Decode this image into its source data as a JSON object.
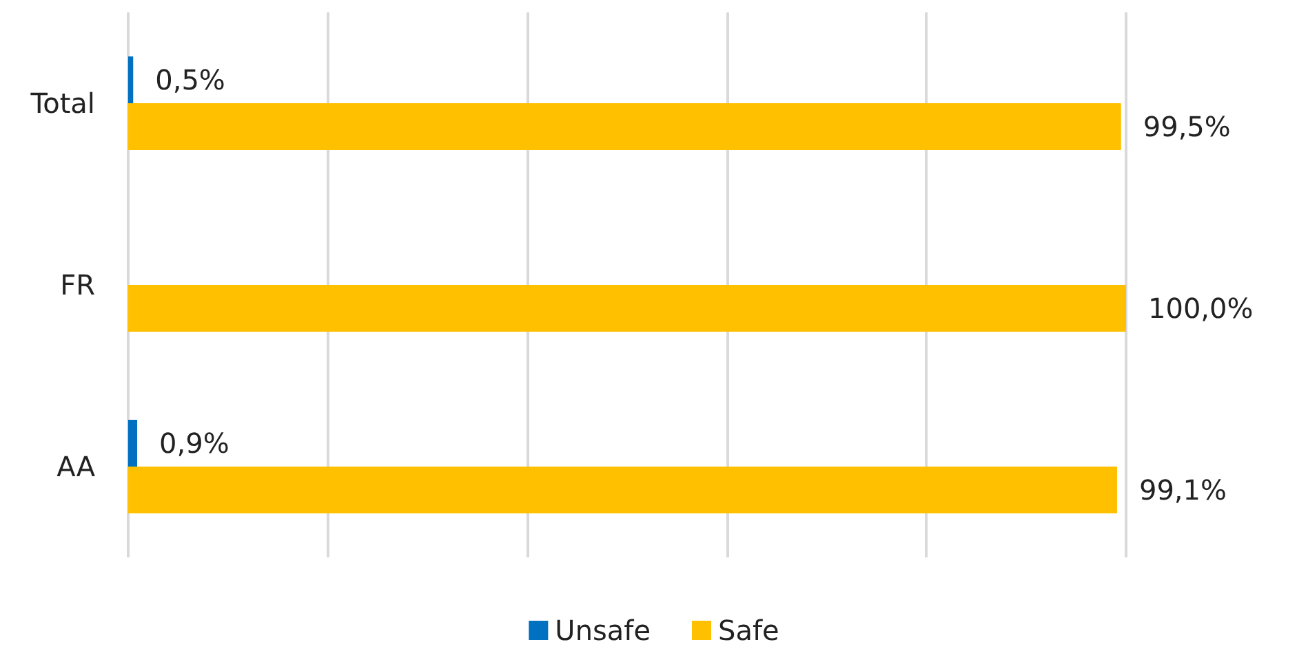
{
  "chart_data": {
    "type": "bar",
    "orientation": "horizontal",
    "categories": [
      "Total",
      "FR",
      "AA"
    ],
    "series": [
      {
        "name": "Unsafe",
        "color": "#0070c0",
        "values": [
          0.5,
          0,
          0.9
        ],
        "value_labels": [
          "0,5%",
          null,
          "0,9%"
        ]
      },
      {
        "name": "Safe",
        "color": "#ffc000",
        "values": [
          99.5,
          100,
          99.1
        ],
        "value_labels": [
          "99,5%",
          "100,0%",
          "99,1%"
        ]
      }
    ],
    "xlim": [
      0,
      100
    ],
    "xticks": [
      {
        "value": 0,
        "label": null
      },
      {
        "value": 20,
        "label": null
      },
      {
        "value": 40,
        "label": null
      },
      {
        "value": 60,
        "label": null
      },
      {
        "value": 80,
        "label": null
      },
      {
        "value": 100,
        "label": null
      }
    ],
    "grid": "x",
    "legend": "bottom",
    "tick_labels": "y"
  }
}
